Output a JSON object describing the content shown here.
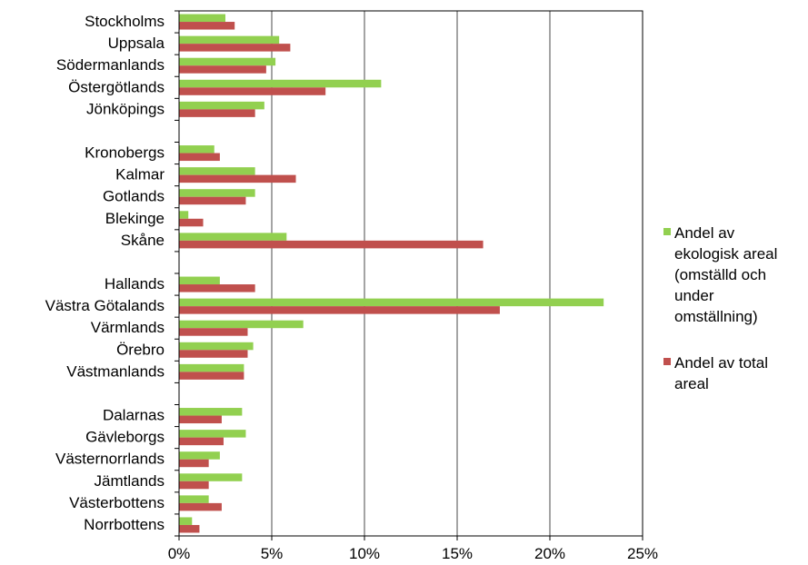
{
  "chart_data": {
    "type": "bar",
    "orientation": "horizontal",
    "title": "",
    "xlabel": "",
    "ylabel": "",
    "xlim": [
      0,
      25
    ],
    "x_ticks": [
      0,
      5,
      10,
      15,
      20,
      25
    ],
    "x_tick_labels": [
      "0%",
      "5%",
      "10%",
      "15%",
      "20%",
      "25%"
    ],
    "grid": "vertical",
    "legend_position": "right",
    "categories": [
      "Stockholms",
      "Uppsala",
      "Södermanlands",
      "Östergötlands",
      "Jönköpings",
      "Kronobergs",
      "Kalmar",
      "Gotlands",
      "Blekinge",
      "Skåne",
      "Hallands",
      "Västra Götalands",
      "Värmlands",
      "Örebro",
      "Västmanlands",
      "Dalarnas",
      "Gävleborgs",
      "Västernorrlands",
      "Jämtlands",
      "Västerbottens",
      "Norrbottens"
    ],
    "groups": [
      [
        "Stockholms",
        "Uppsala",
        "Södermanlands",
        "Östergötlands",
        "Jönköpings"
      ],
      [
        "Kronobergs",
        "Kalmar",
        "Gotlands",
        "Blekinge",
        "Skåne"
      ],
      [
        "Hallands",
        "Västra Götalands",
        "Värmlands",
        "Örebro",
        "Västmanlands"
      ],
      [
        "Dalarnas",
        "Gävleborgs",
        "Västernorrlands",
        "Jämtlands",
        "Västerbottens",
        "Norrbottens"
      ]
    ],
    "series": [
      {
        "name": "Andel av ekologisk areal (omställd och under omställning)",
        "legend_lines": [
          "Andel av",
          "ekologisk areal",
          "(omställd och",
          "under",
          "omställning)"
        ],
        "color": "#92d050",
        "values": [
          2.5,
          5.4,
          5.2,
          10.9,
          4.6,
          1.9,
          4.1,
          4.1,
          0.5,
          5.8,
          2.2,
          22.9,
          6.7,
          4.0,
          3.5,
          3.4,
          3.6,
          2.2,
          3.4,
          1.6,
          0.7
        ]
      },
      {
        "name": "Andel av total areal",
        "legend_lines": [
          "Andel av total",
          "areal"
        ],
        "color": "#c0504d",
        "values": [
          3.0,
          6.0,
          4.7,
          7.9,
          4.1,
          2.2,
          6.3,
          3.6,
          1.3,
          16.4,
          4.1,
          17.3,
          3.7,
          3.7,
          3.5,
          2.3,
          2.4,
          1.6,
          1.6,
          2.3,
          1.1
        ]
      }
    ]
  }
}
